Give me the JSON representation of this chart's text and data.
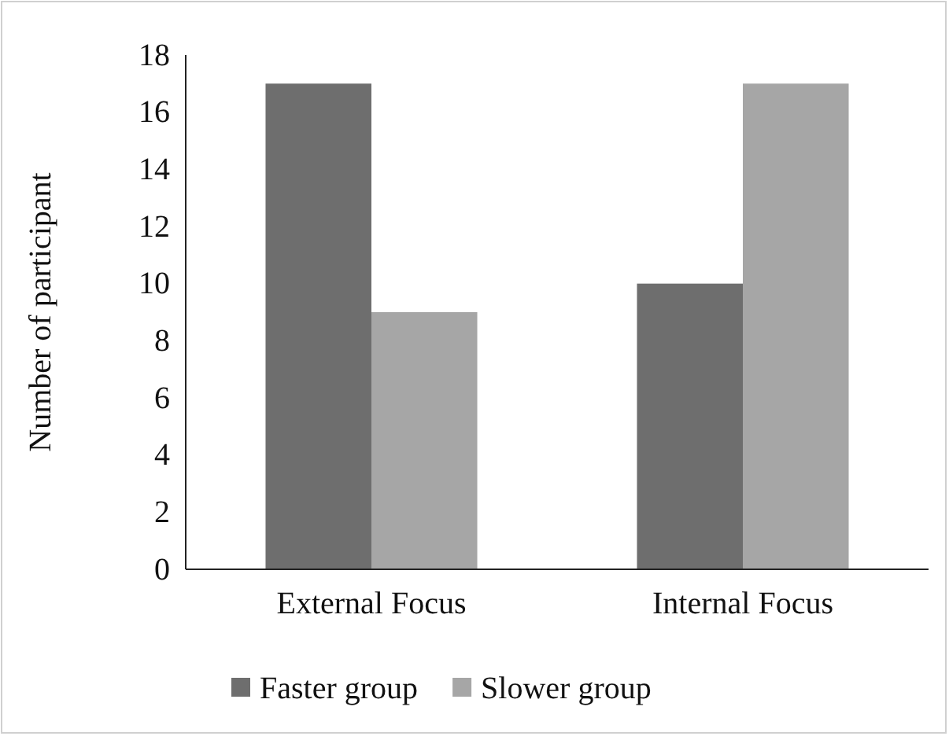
{
  "chart_data": {
    "type": "bar",
    "ylabel": "Number of participant",
    "categories": [
      "External Focus",
      "Internal Focus"
    ],
    "series": [
      {
        "name": "Faster group",
        "color": "#6e6e6e",
        "values": [
          17,
          10
        ]
      },
      {
        "name": "Slower group",
        "color": "#a6a6a6",
        "values": [
          9,
          17
        ]
      }
    ],
    "ylim": [
      0,
      18
    ],
    "yticks": [
      0,
      2,
      4,
      6,
      8,
      10,
      12,
      14,
      16,
      18
    ],
    "grid": false,
    "legend": "bottom"
  }
}
